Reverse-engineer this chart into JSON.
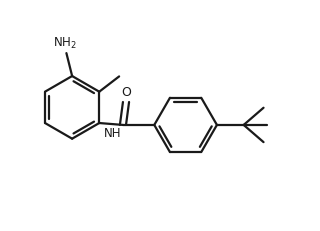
{
  "bg_color": "#ffffff",
  "line_color": "#1a1a1a",
  "line_width": 1.6,
  "font_size": 8.5,
  "fig_width": 3.2,
  "fig_height": 2.32,
  "dpi": 100,
  "xlim": [
    0.0,
    8.0
  ],
  "ylim": [
    0.0,
    6.0
  ]
}
